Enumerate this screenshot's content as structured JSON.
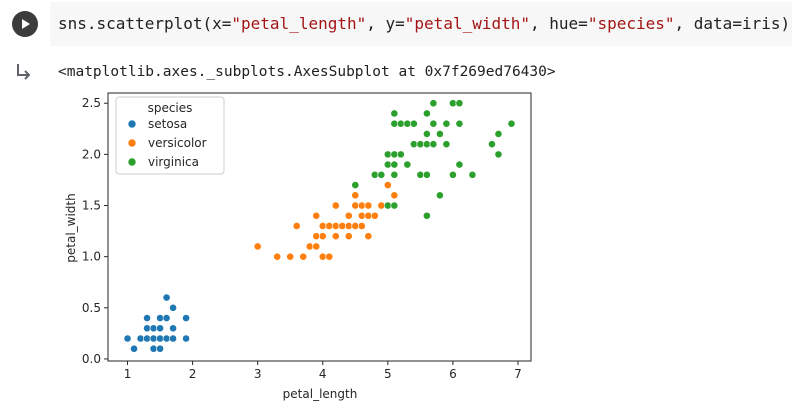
{
  "cell": {
    "code_prefix": "sns.scatterplot(x=",
    "code_x": "\"petal_length\"",
    "code_sep1": ", y=",
    "code_y": "\"petal_width\"",
    "code_sep2": ", hue=",
    "code_hue": "\"species\"",
    "code_suffix": ", data=iris)",
    "output_text": "<matplotlib.axes._subplots.AxesSubplot at 0x7f269ed76430>"
  },
  "icons": {
    "run": "play-icon",
    "output": "output-arrow-icon"
  },
  "chart_data": {
    "type": "scatter",
    "title": "",
    "xlabel": "petal_length",
    "ylabel": "petal_width",
    "xlim": [
      0.7,
      7.2
    ],
    "ylim": [
      -0.02,
      2.6
    ],
    "x_ticks": [
      1,
      2,
      3,
      4,
      5,
      6,
      7
    ],
    "y_ticks": [
      0.0,
      0.5,
      1.0,
      1.5,
      2.0,
      2.5
    ],
    "y_tick_labels": [
      "0.0",
      "0.5",
      "1.0",
      "1.5",
      "2.0",
      "2.5"
    ],
    "grid": false,
    "legend": {
      "title": "species",
      "placement": "upper-left"
    },
    "series": [
      {
        "name": "setosa",
        "color": "#1f77b4",
        "points": [
          [
            1.0,
            0.2
          ],
          [
            1.1,
            0.1
          ],
          [
            1.2,
            0.2
          ],
          [
            1.3,
            0.2
          ],
          [
            1.3,
            0.3
          ],
          [
            1.3,
            0.4
          ],
          [
            1.4,
            0.1
          ],
          [
            1.4,
            0.2
          ],
          [
            1.4,
            0.3
          ],
          [
            1.5,
            0.1
          ],
          [
            1.5,
            0.2
          ],
          [
            1.5,
            0.3
          ],
          [
            1.5,
            0.4
          ],
          [
            1.6,
            0.2
          ],
          [
            1.6,
            0.4
          ],
          [
            1.6,
            0.6
          ],
          [
            1.7,
            0.2
          ],
          [
            1.7,
            0.3
          ],
          [
            1.7,
            0.5
          ],
          [
            1.9,
            0.2
          ],
          [
            1.9,
            0.4
          ]
        ]
      },
      {
        "name": "versicolor",
        "color": "#ff7f0e",
        "points": [
          [
            3.0,
            1.1
          ],
          [
            3.3,
            1.0
          ],
          [
            3.5,
            1.0
          ],
          [
            3.6,
            1.3
          ],
          [
            3.7,
            1.0
          ],
          [
            3.8,
            1.1
          ],
          [
            3.9,
            1.1
          ],
          [
            3.9,
            1.2
          ],
          [
            3.9,
            1.4
          ],
          [
            4.0,
            1.0
          ],
          [
            4.0,
            1.2
          ],
          [
            4.0,
            1.3
          ],
          [
            4.1,
            1.0
          ],
          [
            4.1,
            1.3
          ],
          [
            4.2,
            1.2
          ],
          [
            4.2,
            1.3
          ],
          [
            4.2,
            1.5
          ],
          [
            4.3,
            1.3
          ],
          [
            4.4,
            1.2
          ],
          [
            4.4,
            1.3
          ],
          [
            4.4,
            1.4
          ],
          [
            4.5,
            1.3
          ],
          [
            4.5,
            1.5
          ],
          [
            4.5,
            1.6
          ],
          [
            4.6,
            1.3
          ],
          [
            4.6,
            1.4
          ],
          [
            4.6,
            1.5
          ],
          [
            4.7,
            1.2
          ],
          [
            4.7,
            1.4
          ],
          [
            4.7,
            1.5
          ],
          [
            4.8,
            1.4
          ],
          [
            4.8,
            1.8
          ],
          [
            4.9,
            1.5
          ],
          [
            5.0,
            1.7
          ],
          [
            5.1,
            1.6
          ]
        ]
      },
      {
        "name": "virginica",
        "color": "#2ca02c",
        "points": [
          [
            4.5,
            1.7
          ],
          [
            4.8,
            1.8
          ],
          [
            4.9,
            1.8
          ],
          [
            5.0,
            1.5
          ],
          [
            5.0,
            1.9
          ],
          [
            5.0,
            2.0
          ],
          [
            5.1,
            1.5
          ],
          [
            5.1,
            1.8
          ],
          [
            5.1,
            1.9
          ],
          [
            5.1,
            2.0
          ],
          [
            5.1,
            2.3
          ],
          [
            5.1,
            2.4
          ],
          [
            5.2,
            2.0
          ],
          [
            5.2,
            2.3
          ],
          [
            5.3,
            1.9
          ],
          [
            5.3,
            2.3
          ],
          [
            5.4,
            2.1
          ],
          [
            5.4,
            2.3
          ],
          [
            5.5,
            1.8
          ],
          [
            5.5,
            2.1
          ],
          [
            5.6,
            1.4
          ],
          [
            5.6,
            1.8
          ],
          [
            5.6,
            2.1
          ],
          [
            5.6,
            2.2
          ],
          [
            5.6,
            2.4
          ],
          [
            5.7,
            2.1
          ],
          [
            5.7,
            2.3
          ],
          [
            5.7,
            2.5
          ],
          [
            5.8,
            1.6
          ],
          [
            5.8,
            2.2
          ],
          [
            5.9,
            2.1
          ],
          [
            5.9,
            2.3
          ],
          [
            6.0,
            1.8
          ],
          [
            6.0,
            2.5
          ],
          [
            6.1,
            1.9
          ],
          [
            6.1,
            2.3
          ],
          [
            6.1,
            2.5
          ],
          [
            6.3,
            1.8
          ],
          [
            6.6,
            2.1
          ],
          [
            6.7,
            2.0
          ],
          [
            6.7,
            2.2
          ],
          [
            6.9,
            2.3
          ]
        ]
      }
    ]
  }
}
